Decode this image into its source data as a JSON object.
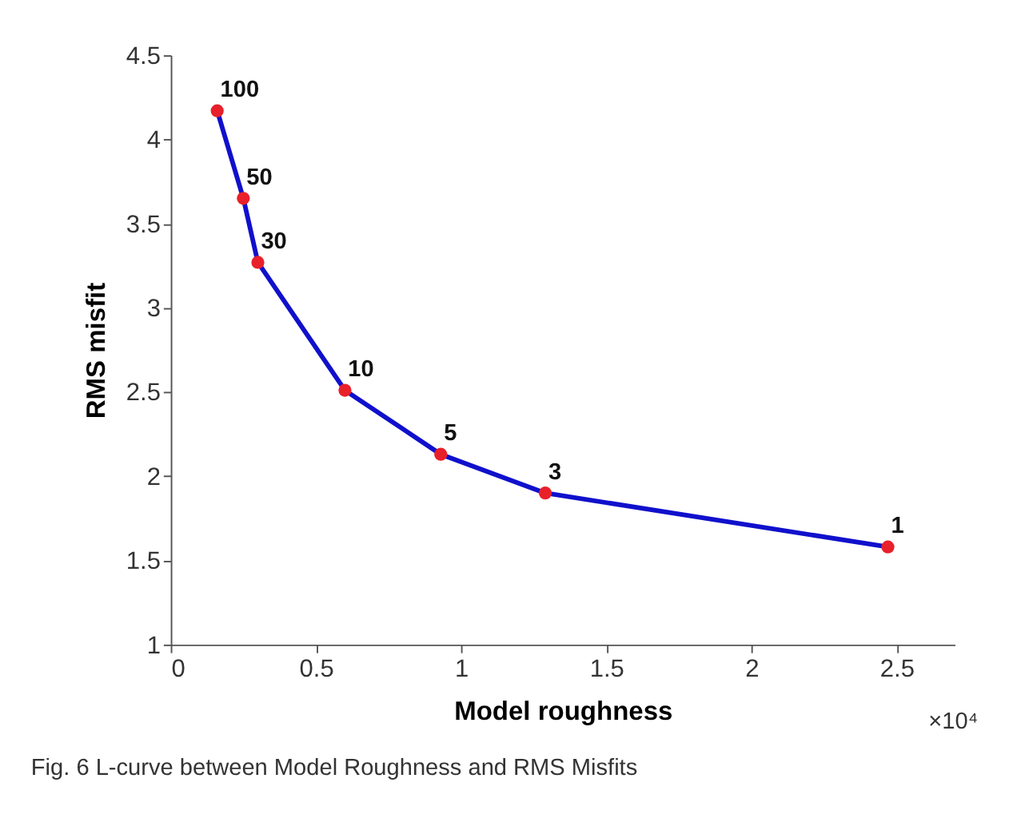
{
  "chart_data": {
    "type": "line",
    "xlabel": "Model roughness",
    "ylabel": "RMS misfit",
    "x": [
      0.16,
      0.25,
      0.3,
      0.6,
      0.93,
      1.29,
      2.47
    ],
    "series": [
      {
        "type": "line",
        "color": "#1010cc",
        "marker": "none",
        "values": [
          4.17,
          3.65,
          3.27,
          2.51,
          2.13,
          1.9,
          1.58
        ]
      },
      {
        "type": "scatter",
        "color": "#e8202a",
        "marker": "circle",
        "values": [
          4.17,
          3.65,
          3.27,
          2.51,
          2.13,
          1.9,
          1.58
        ]
      }
    ],
    "xlim": [
      0,
      2.7
    ],
    "xticks": [
      0,
      0.5,
      1,
      1.5,
      2,
      2.5
    ],
    "ylim": [
      1,
      4.5
    ],
    "yticks": [
      1,
      1.5,
      2,
      2.5,
      3,
      3.5,
      4,
      4.5
    ],
    "grid": false,
    "annotations": [
      {
        "text": "100",
        "x": 0.16,
        "y": 4.17
      },
      {
        "text": "50",
        "x": 0.25,
        "y": 3.65
      },
      {
        "text": "30",
        "x": 0.3,
        "y": 3.27
      },
      {
        "text": "10",
        "x": 0.6,
        "y": 2.51
      },
      {
        "text": "5",
        "x": 0.93,
        "y": 2.13
      },
      {
        "text": "3",
        "x": 1.29,
        "y": 1.9
      },
      {
        "text": "1",
        "x": 2.47,
        "y": 1.58
      },
      "×10⁴",
      "Fig. 6  L-curve between Model Roughness and RMS Misfits"
    ]
  }
}
